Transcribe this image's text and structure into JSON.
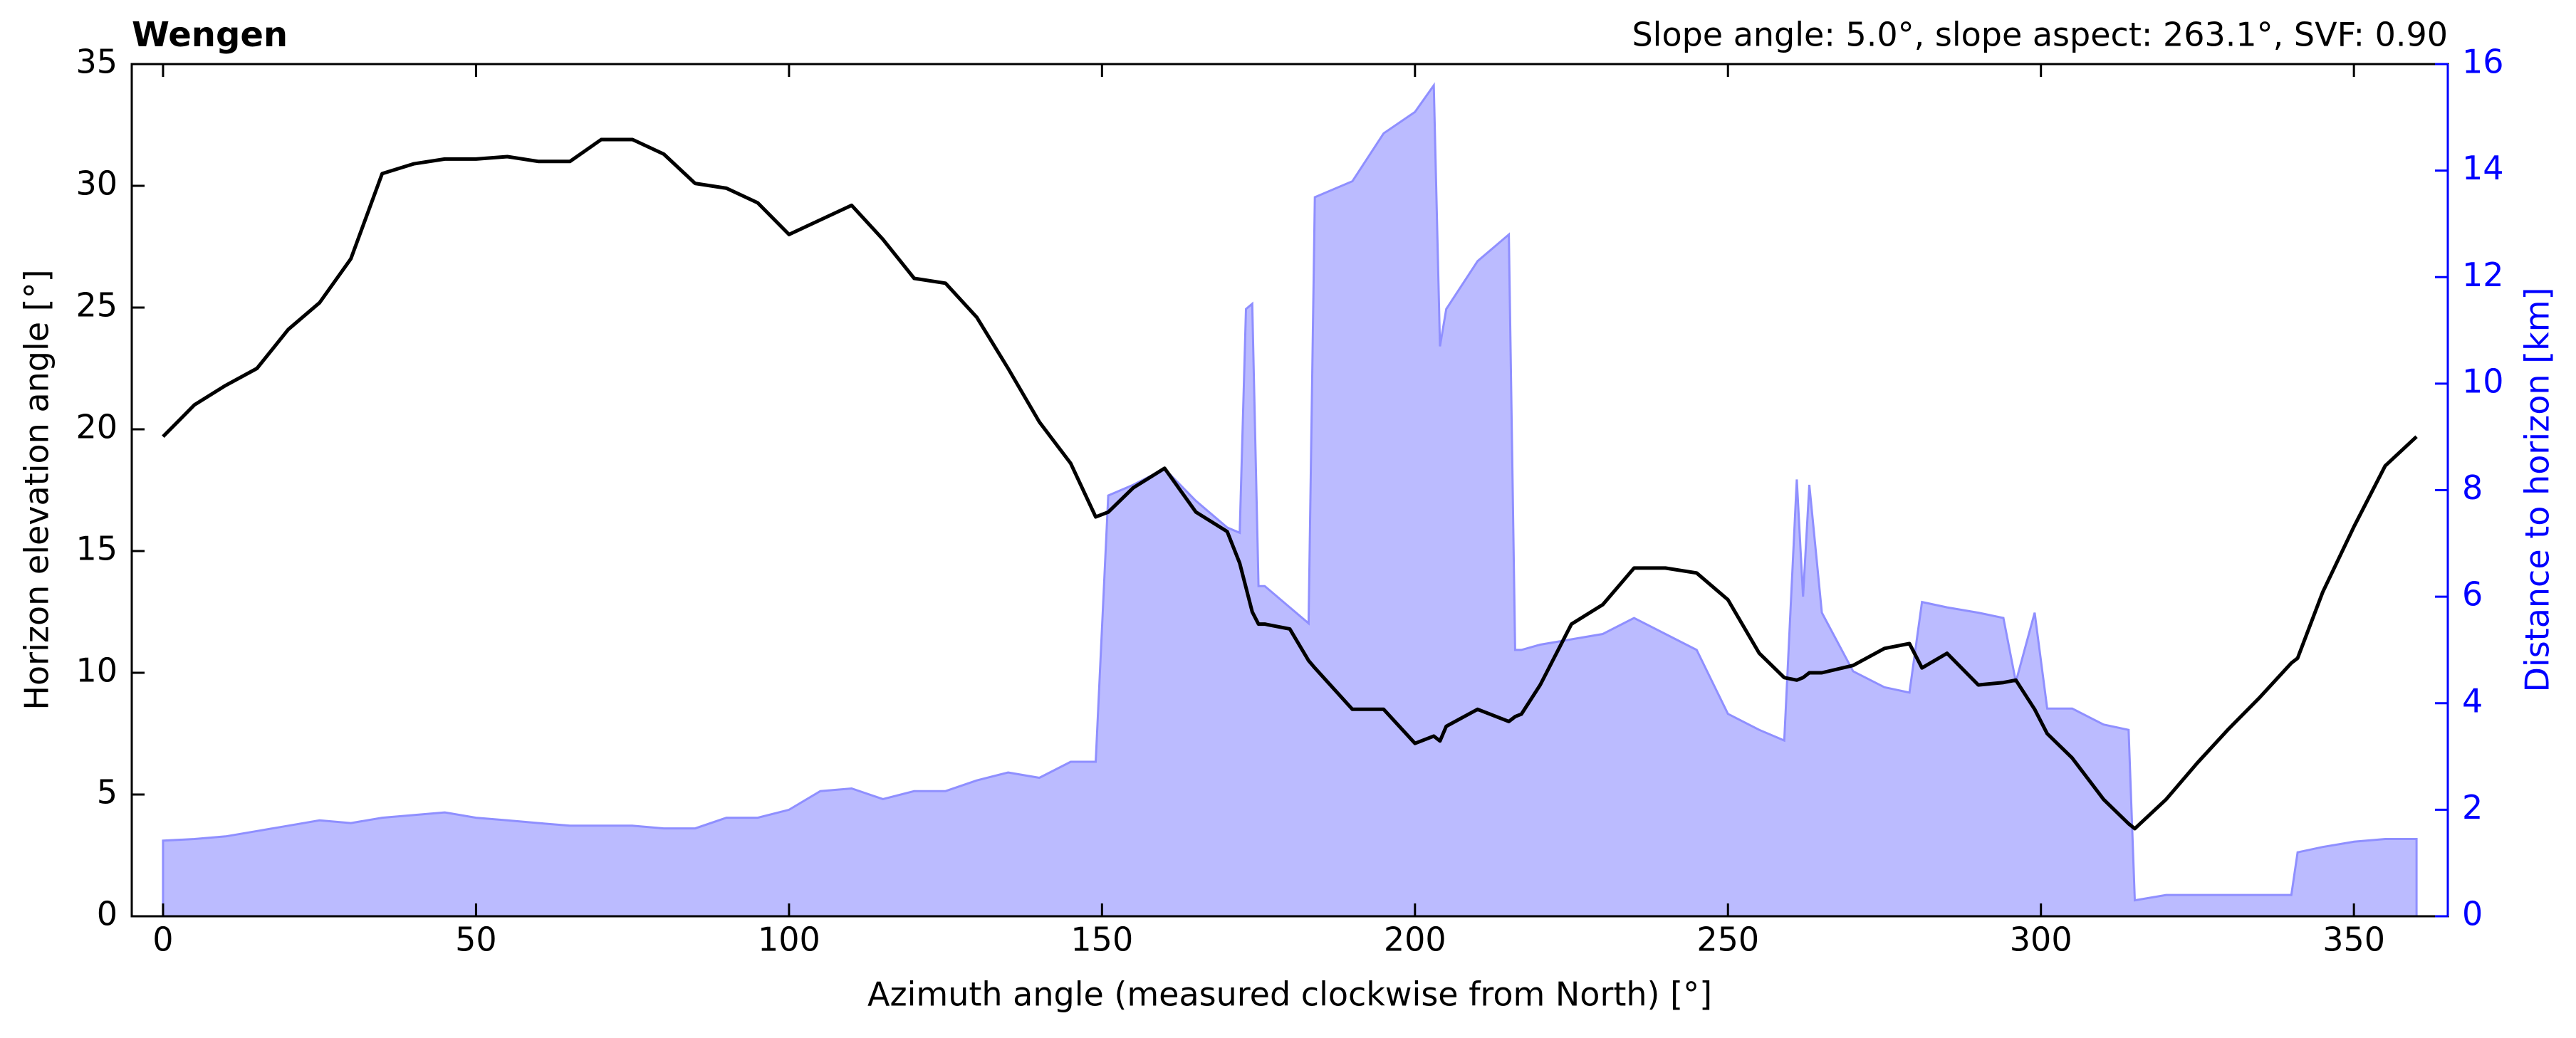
{
  "chart_data": {
    "type": "line",
    "title": "Wengen",
    "subtitle": "Slope angle: 5.0°, slope aspect: 263.1°, SVF: 0.90",
    "xlabel": "Azimuth angle (measured clockwise from North) [°]",
    "ylabel": "Horizon elevation angle [°]",
    "y2label": "Distance to horizon [km]",
    "y2color": "#0000ff",
    "xlim": [
      -5,
      365
    ],
    "xticks": [
      0,
      50,
      100,
      150,
      200,
      250,
      300,
      350
    ],
    "ylim": [
      0,
      35
    ],
    "yticks": [
      0,
      5,
      10,
      15,
      20,
      25,
      30,
      35
    ],
    "y2lim": [
      0,
      16
    ],
    "y2ticks": [
      0,
      2,
      4,
      6,
      8,
      10,
      12,
      14,
      16
    ],
    "x": [
      0,
      5,
      10,
      15,
      20,
      25,
      30,
      35,
      40,
      45,
      50,
      55,
      60,
      65,
      70,
      75,
      80,
      85,
      90,
      95,
      100,
      105,
      110,
      115,
      120,
      125,
      130,
      135,
      140,
      145,
      149,
      151,
      155,
      160,
      165,
      170,
      172,
      173,
      174,
      175,
      176,
      180,
      183,
      184,
      190,
      195,
      200,
      203,
      204,
      205,
      210,
      215,
      216,
      217,
      220,
      225,
      230,
      235,
      240,
      245,
      250,
      255,
      259,
      261,
      262,
      263,
      265,
      270,
      275,
      279,
      281,
      285,
      290,
      294,
      296,
      299,
      301,
      305,
      310,
      314,
      315,
      320,
      325,
      330,
      335,
      340,
      341,
      345,
      350,
      355,
      360
    ],
    "series": [
      {
        "color": "#bbbbff",
        "axis": "y2",
        "fill": true,
        "values": [
          1.42,
          1.45,
          1.5,
          1.6,
          1.7,
          1.8,
          1.75,
          1.85,
          1.9,
          1.95,
          1.85,
          1.8,
          1.75,
          1.7,
          1.7,
          1.7,
          1.65,
          1.65,
          1.85,
          1.85,
          2.0,
          2.35,
          2.4,
          2.2,
          2.35,
          2.35,
          2.55,
          2.7,
          2.6,
          2.9,
          2.9,
          7.9,
          8.1,
          8.4,
          7.8,
          7.3,
          7.2,
          11.4,
          11.5,
          6.2,
          6.2,
          5.8,
          5.5,
          13.5,
          13.8,
          14.7,
          15.1,
          15.6,
          10.7,
          11.4,
          12.3,
          12.8,
          5.0,
          5.0,
          5.1,
          5.2,
          5.3,
          5.6,
          5.3,
          5.0,
          3.8,
          3.5,
          3.3,
          8.2,
          6.0,
          8.1,
          5.7,
          4.6,
          4.3,
          4.2,
          5.9,
          5.8,
          5.7,
          5.6,
          4.4,
          5.7,
          3.9,
          3.9,
          3.6,
          3.5,
          0.3,
          0.4,
          0.4,
          0.4,
          0.4,
          0.4,
          1.2,
          1.3,
          1.4,
          1.45,
          1.45
        ]
      },
      {
        "color": "#000000",
        "values": [
          19.7,
          21,
          21.8,
          22.5,
          24.1,
          25.2,
          27,
          30.5,
          30.9,
          31.1,
          31.1,
          31.2,
          31.0,
          31.0,
          31.9,
          31.9,
          31.3,
          30.1,
          29.9,
          29.3,
          28.0,
          28.6,
          29.2,
          27.8,
          26.2,
          26.0,
          24.6,
          22.5,
          20.3,
          18.6,
          16.4,
          16.6,
          17.6,
          18.4,
          16.6,
          15.8,
          14.5,
          13.5,
          12.5,
          12.0,
          12.0,
          11.8,
          10.5,
          10.2,
          8.5,
          8.5,
          7.1,
          7.4,
          7.2,
          7.8,
          8.5,
          8.0,
          8.2,
          8.3,
          9.5,
          12.0,
          12.8,
          14.3,
          14.3,
          14.1,
          13.0,
          10.8,
          9.8,
          9.7,
          9.8,
          10.0,
          10.0,
          10.3,
          11.0,
          11.2,
          10.2,
          10.8,
          9.5,
          9.6,
          9.7,
          8.5,
          7.5,
          6.5,
          4.8,
          3.8,
          3.6,
          4.8,
          6.3,
          7.7,
          9.0,
          10.4,
          10.6,
          13.3,
          16.0,
          18.5,
          19.7
        ]
      }
    ]
  }
}
